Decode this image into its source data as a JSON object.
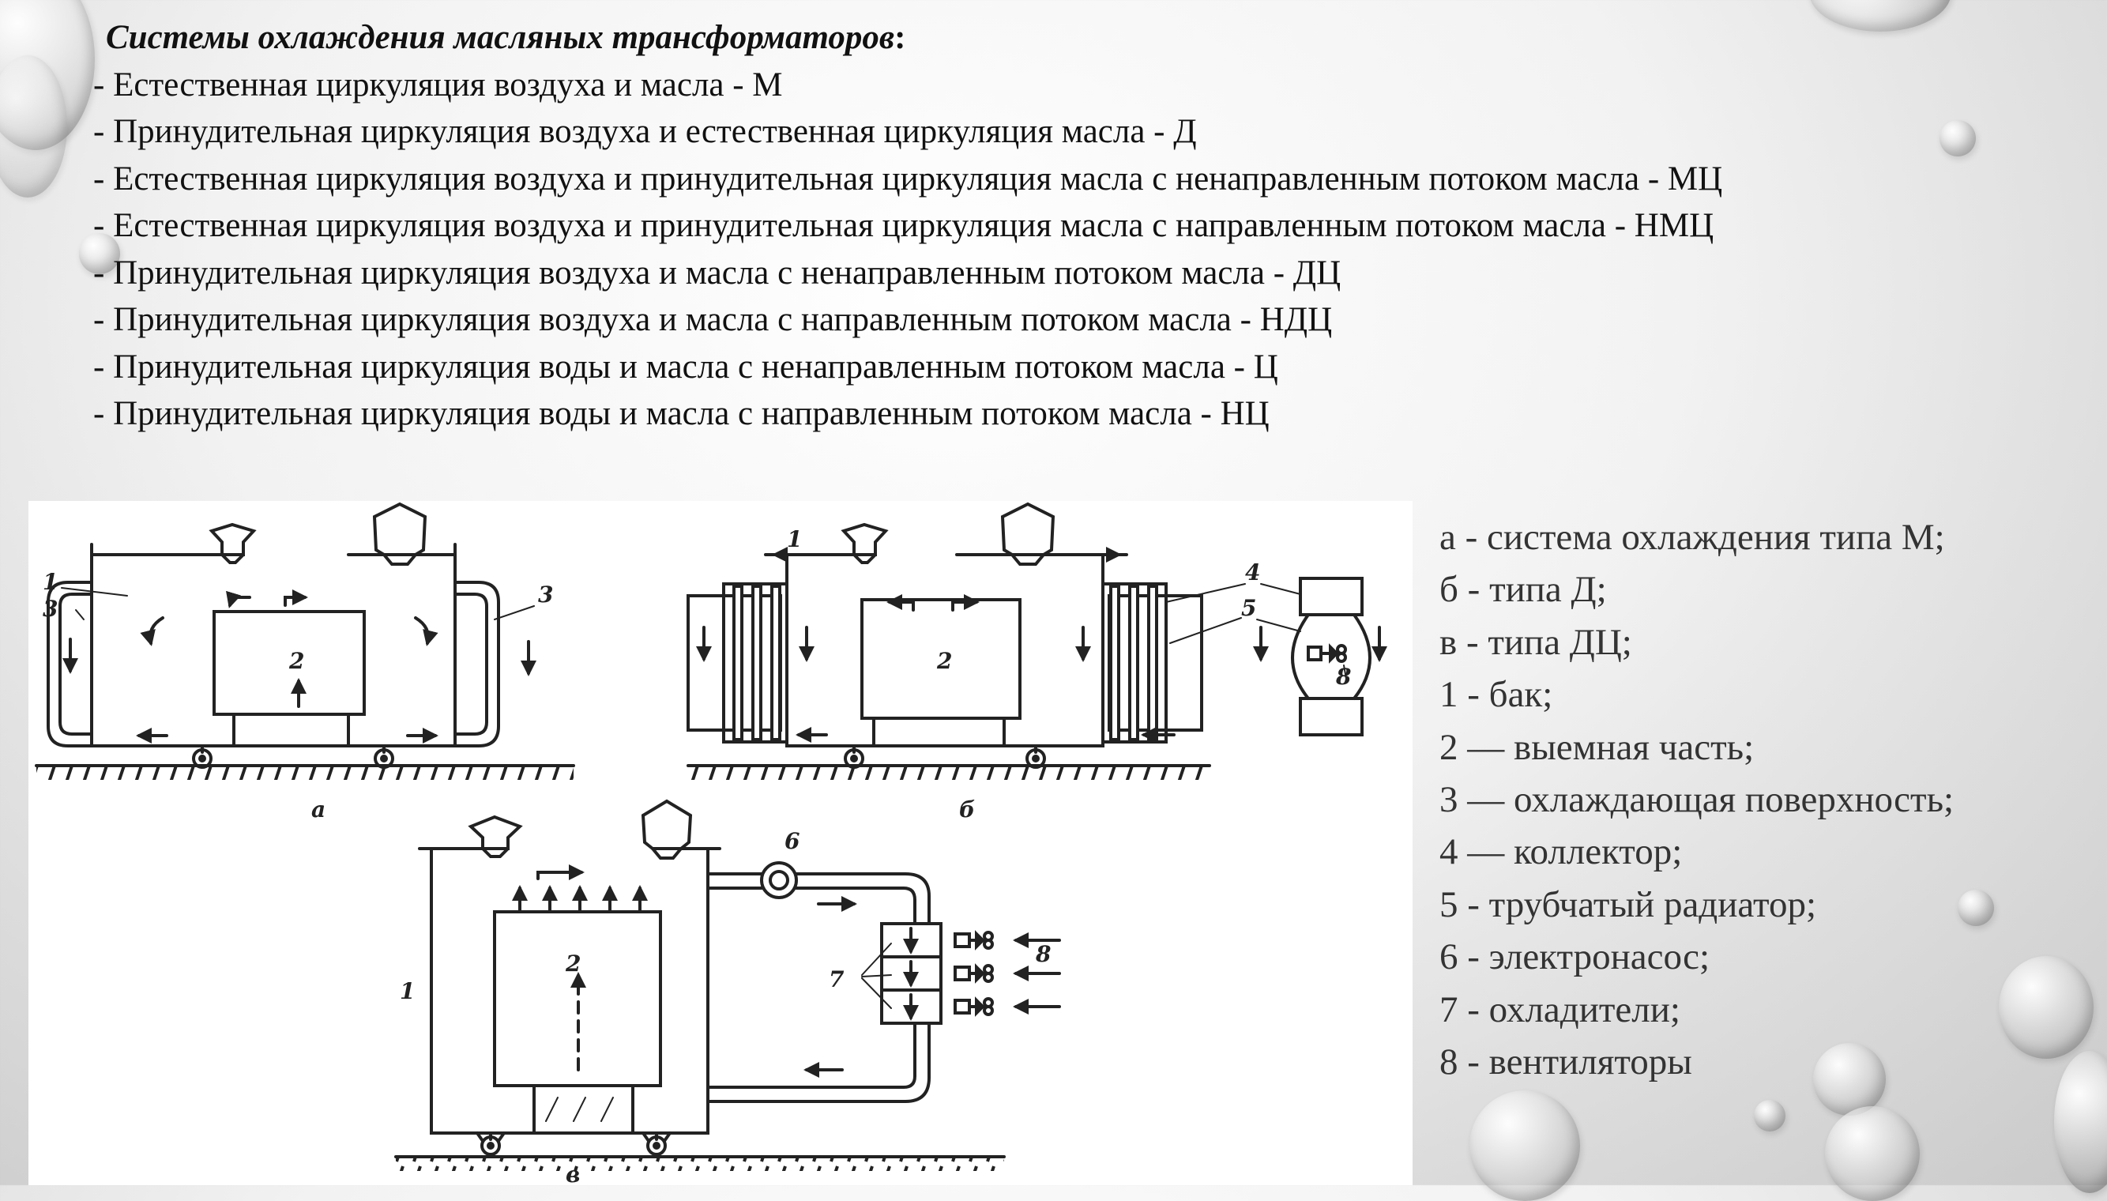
{
  "header": {
    "title": "Системы охлаждения масляных трансформаторов",
    "title_suffix": ":",
    "lines": [
      "- Естественная циркуляция воздуха и масла - М",
      "- Принудительная циркуляция воздуха и естественная циркуляция масла - Д",
      "- Естественная циркуляция воздуха и принудительная циркуляция масла с ненаправленным потоком масла - МЦ",
      "- Естественная циркуляция воздуха и принудительная циркуляция масла с направленным потоком масла - НМЦ",
      "- Принудительная циркуляция воздуха и масла с ненаправленным потоком масла - ДЦ",
      "- Принудительная циркуляция воздуха и масла с направленным потоком масла - НДЦ",
      "- Принудительная циркуляция воды и масла с ненаправленным потоком масла - Ц",
      "- Принудительная циркуляция воды и масла с направленным потоком масла - НЦ"
    ]
  },
  "legend": [
    "а - система охлаждения типа М;",
    "б - типа Д;",
    "в - типа ДЦ;",
    "1 - бак;",
    "2 — выемная часть;",
    "3 — охлаждающая поверхность;",
    "4 — коллектор;",
    "5 - трубчатый радиатор;",
    "6 - электронасос;",
    "7 - охладители;",
    "8 - вентиляторы"
  ],
  "figure": {
    "captions": {
      "a": "а",
      "b": "б",
      "v": "в"
    },
    "labels": {
      "n1": "1",
      "n2": "2",
      "n3": "3",
      "n4": "4",
      "n5": "5",
      "n6": "6",
      "n7": "7",
      "n8": "8"
    }
  }
}
